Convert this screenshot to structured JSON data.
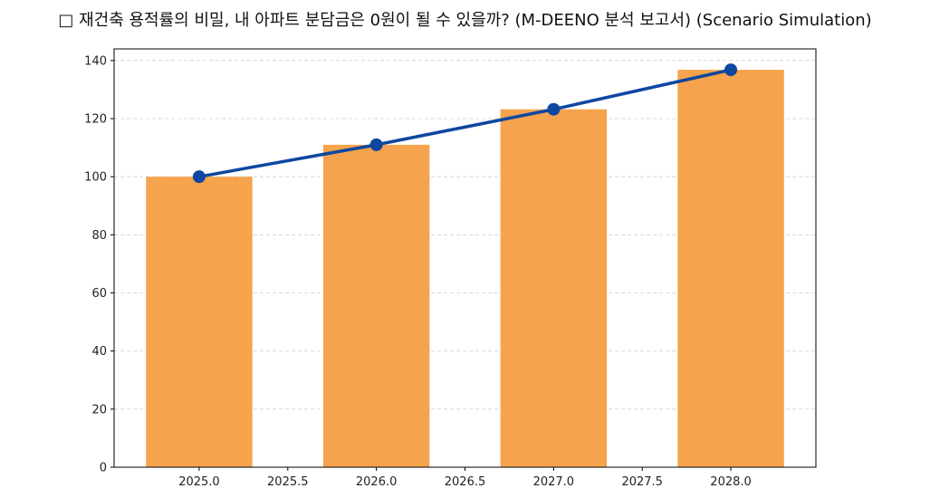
{
  "chart_data": {
    "type": "bar",
    "title": "□ 재건축 용적률의 비밀, 내 아파트 분담금은 0원이 될 수 있을까? (M-DEENO 분석 보고서) (Scenario Simulation)",
    "xlabel": "",
    "ylabel": "",
    "x": [
      2025,
      2026,
      2027,
      2028
    ],
    "series": [
      {
        "type": "bar",
        "values": [
          100,
          111,
          123.2,
          136.8
        ],
        "color": "#F5A34D"
      },
      {
        "type": "line",
        "values": [
          100,
          111,
          123.2,
          136.8
        ],
        "color": "#0D47A1",
        "marker": "circle"
      }
    ],
    "xlim": [
      2024.52,
      2028.48
    ],
    "ylim": [
      0,
      144
    ],
    "xticks": [
      "2025.0",
      "2025.5",
      "2026.0",
      "2026.5",
      "2027.0",
      "2027.5",
      "2028.0"
    ],
    "yticks": [
      "0",
      "20",
      "40",
      "60",
      "80",
      "100",
      "120",
      "140"
    ],
    "grid": "y-dashed",
    "legend": "none"
  }
}
